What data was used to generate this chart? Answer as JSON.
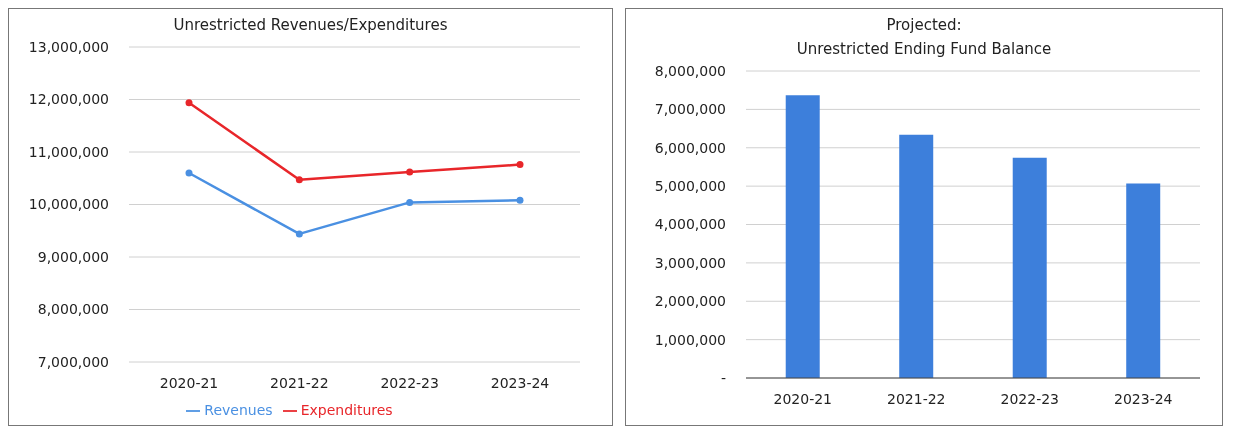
{
  "chart_data": [
    {
      "type": "line",
      "title": "Unrestricted Revenues/Expenditures",
      "categories": [
        "2020-21",
        "2021-22",
        "2022-23",
        "2023-24"
      ],
      "series": [
        {
          "name": "Revenues",
          "color": "#4a90e2",
          "values": [
            10600000,
            9440000,
            10040000,
            10080000
          ]
        },
        {
          "name": "Expenditures",
          "color": "#e8262a",
          "values": [
            11940000,
            10470000,
            10620000,
            10760000
          ]
        }
      ],
      "ylim": [
        7000000,
        13000000
      ],
      "yticks": [
        {
          "value": 7000000,
          "label": "7,000,000"
        },
        {
          "value": 8000000,
          "label": "8,000,000"
        },
        {
          "value": 9000000,
          "label": "9,000,000"
        },
        {
          "value": 10000000,
          "label": "10,000,000"
        },
        {
          "value": 11000000,
          "label": "11,000,000"
        },
        {
          "value": 12000000,
          "label": "12,000,000"
        },
        {
          "value": 13000000,
          "label": "13,000,000"
        }
      ],
      "grid": "y",
      "legend": "bottom",
      "marker": "circle",
      "line_style": "solid"
    },
    {
      "type": "bar",
      "title": "Projected:\nUnrestricted Ending Fund Balance",
      "categories": [
        "2020-21",
        "2021-22",
        "2022-23",
        "2023-24"
      ],
      "values": [
        7370000,
        6340000,
        5740000,
        5070000
      ],
      "color": "#3d7fdb",
      "ylim": [
        0,
        8000000
      ],
      "yticks": [
        {
          "value": 0,
          "label": "-"
        },
        {
          "value": 1000000,
          "label": "1,000,000"
        },
        {
          "value": 2000000,
          "label": "2,000,000"
        },
        {
          "value": 3000000,
          "label": "3,000,000"
        },
        {
          "value": 4000000,
          "label": "4,000,000"
        },
        {
          "value": 5000000,
          "label": "5,000,000"
        },
        {
          "value": 6000000,
          "label": "6,000,000"
        },
        {
          "value": 7000000,
          "label": "7,000,000"
        },
        {
          "value": 8000000,
          "label": "8,000,000"
        }
      ],
      "grid": "y"
    }
  ]
}
